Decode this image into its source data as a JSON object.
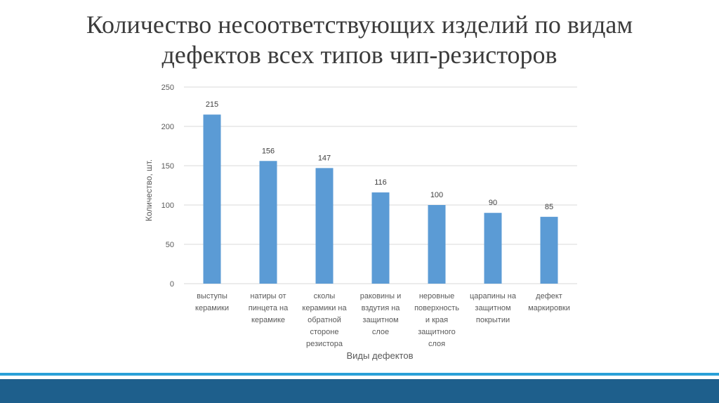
{
  "slide": {
    "title_line1": "Количество несоответствующих изделий по видам",
    "title_line2": "дефектов всех типов чип-резисторов"
  },
  "colors": {
    "bar": "#5b9bd5",
    "axis_text": "#595959",
    "grid": "#d9d9d9",
    "accent_thin": "#2aa0d8",
    "accent_band": "#1e5f8c"
  },
  "chart_data": {
    "type": "bar",
    "categories": [
      [
        "выступы",
        "керамики"
      ],
      [
        "натиры от",
        "пинцета на",
        "керамике"
      ],
      [
        "сколы",
        "керамики на",
        "обратной",
        "стороне",
        "резистора"
      ],
      [
        "раковины и",
        "вздутия на",
        "защитном",
        "слое"
      ],
      [
        "неровные",
        "поверхность",
        "и края",
        "защитного",
        "слоя"
      ],
      [
        "царапины на",
        "защитном",
        "покрытии"
      ],
      [
        "дефект",
        "маркировки"
      ]
    ],
    "values": [
      215,
      156,
      147,
      116,
      100,
      90,
      85
    ],
    "xlabel": "Виды дефектов",
    "ylabel": "Количество, шт.",
    "ylim": [
      0,
      250
    ],
    "yticks": [
      0,
      50,
      100,
      150,
      200,
      250
    ],
    "grid": true,
    "data_labels": true
  }
}
